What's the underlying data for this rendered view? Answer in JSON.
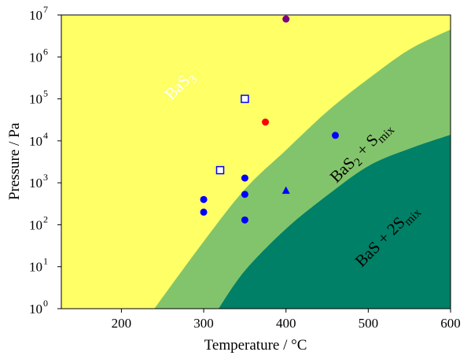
{
  "chart_data": {
    "type": "scatter",
    "xlabel": "Temperature / °C",
    "ylabel": "Pressure / Pa",
    "xlim": [
      127,
      600
    ],
    "ylim": [
      1,
      10000000
    ],
    "yscale": "log",
    "xticks": [
      200,
      300,
      400,
      500,
      600
    ],
    "yticks": [
      {
        "value": 1,
        "base": "10",
        "exp": "0"
      },
      {
        "value": 10,
        "base": "10",
        "exp": "1"
      },
      {
        "value": 100,
        "base": "10",
        "exp": "2"
      },
      {
        "value": 1000,
        "base": "10",
        "exp": "3"
      },
      {
        "value": 10000,
        "base": "10",
        "exp": "4"
      },
      {
        "value": 100000,
        "base": "10",
        "exp": "5"
      },
      {
        "value": 1000000,
        "base": "10",
        "exp": "6"
      },
      {
        "value": 10000000,
        "base": "10",
        "exp": "7"
      }
    ],
    "regions": [
      {
        "label_main": "BaS",
        "label_sub": "3",
        "label_rest": "",
        "color": "#ffff66"
      },
      {
        "label_main": "BaS",
        "label_sub": "2",
        "label_rest": " + S",
        "label_sub2": "mix",
        "color": "#82c46c"
      },
      {
        "label_main": "BaS + 2S",
        "label_sub": "mix",
        "color": "#008066"
      }
    ],
    "boundaries": [
      {
        "name": "BaS3/BaS2",
        "points": [
          [
            240,
            1
          ],
          [
            300,
            40
          ],
          [
            350,
            700
          ],
          [
            400,
            6000
          ],
          [
            450,
            50000
          ],
          [
            500,
            300000
          ],
          [
            550,
            1500000
          ],
          [
            600,
            4500000
          ]
        ]
      },
      {
        "name": "BaS2/BaS",
        "points": [
          [
            318,
            1
          ],
          [
            350,
            8
          ],
          [
            400,
            80
          ],
          [
            450,
            500
          ],
          [
            500,
            2500
          ],
          [
            550,
            6500
          ],
          [
            600,
            14000
          ]
        ]
      }
    ],
    "points": [
      {
        "x": 300,
        "y": 400,
        "marker": "circle",
        "color": "#0000ff"
      },
      {
        "x": 300,
        "y": 200,
        "marker": "circle",
        "color": "#0000ff"
      },
      {
        "x": 320,
        "y": 2000,
        "marker": "square-open",
        "color": "#0000ff"
      },
      {
        "x": 350,
        "y": 100000,
        "marker": "square-open",
        "color": "#0000ff"
      },
      {
        "x": 350,
        "y": 1300,
        "marker": "circle",
        "color": "#0000ff"
      },
      {
        "x": 350,
        "y": 530,
        "marker": "circle",
        "color": "#0000ff"
      },
      {
        "x": 350,
        "y": 130,
        "marker": "circle",
        "color": "#0000ff"
      },
      {
        "x": 375,
        "y": 28000,
        "marker": "circle",
        "color": "#ff0000"
      },
      {
        "x": 400,
        "y": 8000000,
        "marker": "circle",
        "color": "#800080"
      },
      {
        "x": 400,
        "y": 650,
        "marker": "triangle",
        "color": "#0000ff"
      },
      {
        "x": 460,
        "y": 13500,
        "marker": "circle",
        "color": "#0000ff"
      }
    ]
  }
}
